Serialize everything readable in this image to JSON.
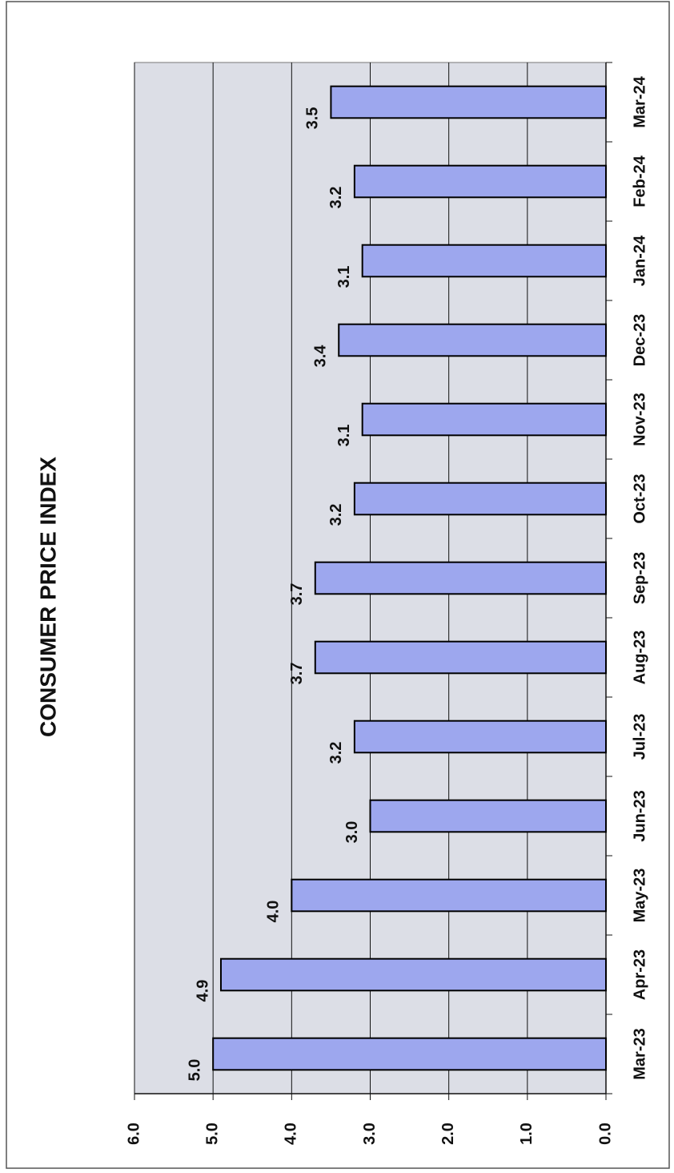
{
  "chart_data": {
    "type": "bar",
    "title": "CONSUMER PRICE INDEX",
    "categories": [
      "Mar-23",
      "Apr-23",
      "May-23",
      "Jun-23",
      "Jul-23",
      "Aug-23",
      "Sep-23",
      "Oct-23",
      "Nov-23",
      "Dec-23",
      "Jan-24",
      "Feb-24",
      "Mar-24"
    ],
    "values": [
      5.0,
      4.9,
      4.0,
      3.0,
      3.2,
      3.7,
      3.7,
      3.2,
      3.1,
      3.4,
      3.1,
      3.2,
      3.5
    ],
    "value_labels": [
      "5.0",
      "4.9",
      "4.0",
      "3.0",
      "3.2",
      "3.7",
      "3.7",
      "3.2",
      "3.1",
      "3.4",
      "3.1",
      "3.2",
      "3.5"
    ],
    "color": "#9da7ee",
    "ylim": [
      0,
      6
    ],
    "yticks": [
      {
        "value": 0,
        "label": "0.0"
      },
      {
        "value": 1,
        "label": "1.0"
      },
      {
        "value": 2,
        "label": "2.0"
      },
      {
        "value": 3,
        "label": "3.0"
      },
      {
        "value": 4,
        "label": "4.0"
      },
      {
        "value": 5,
        "label": "5.0"
      },
      {
        "value": 6,
        "label": "6.0"
      }
    ],
    "grid": true
  }
}
